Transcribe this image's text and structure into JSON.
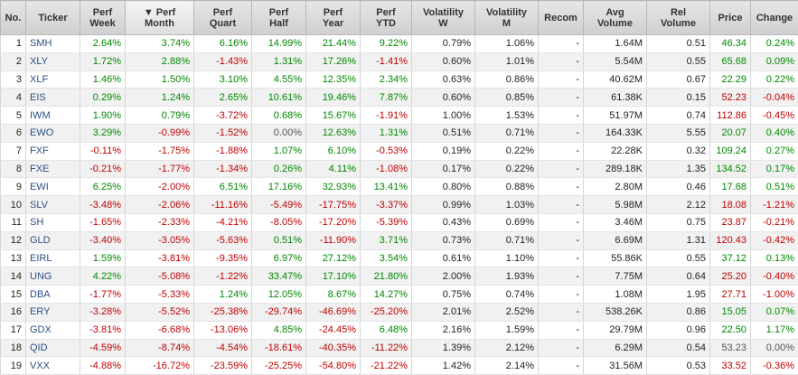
{
  "table": {
    "sorted_marker": "▼",
    "header": [
      [
        "No."
      ],
      [
        "Ticker"
      ],
      [
        "Perf",
        "Week"
      ],
      [
        "Perf",
        "Month"
      ],
      [
        "Perf",
        "Quart"
      ],
      [
        "Perf",
        "Half"
      ],
      [
        "Perf",
        "Year"
      ],
      [
        "Perf",
        "YTD"
      ],
      [
        "Volatility",
        "W"
      ],
      [
        "Volatility",
        "M"
      ],
      [
        "Recom"
      ],
      [
        "Avg",
        "Volume"
      ],
      [
        "Rel",
        "Volume"
      ],
      [
        "Price"
      ],
      [
        "Change"
      ]
    ],
    "rows": [
      [
        "1",
        "SMH",
        "2.64%",
        "3.74%",
        "6.16%",
        "14.99%",
        "21.44%",
        "9.22%",
        "0.79%",
        "1.06%",
        "-",
        "1.64M",
        "0.51",
        "46.34",
        "0.24%"
      ],
      [
        "2",
        "XLY",
        "1.72%",
        "2.88%",
        "-1.43%",
        "1.31%",
        "17.26%",
        "-1.41%",
        "0.60%",
        "1.01%",
        "-",
        "5.54M",
        "0.55",
        "65.68",
        "0.09%"
      ],
      [
        "3",
        "XLF",
        "1.46%",
        "1.50%",
        "3.10%",
        "4.55%",
        "12.35%",
        "2.34%",
        "0.63%",
        "0.86%",
        "-",
        "40.62M",
        "0.67",
        "22.29",
        "0.22%"
      ],
      [
        "4",
        "EIS",
        "0.29%",
        "1.24%",
        "2.65%",
        "10.61%",
        "19.46%",
        "7.87%",
        "0.60%",
        "0.85%",
        "-",
        "61.38K",
        "0.15",
        "52.23",
        "-0.04%"
      ],
      [
        "5",
        "IWM",
        "1.90%",
        "0.79%",
        "-3.72%",
        "0.68%",
        "15.67%",
        "-1.91%",
        "1.00%",
        "1.53%",
        "-",
        "51.97M",
        "0.74",
        "112.86",
        "-0.45%"
      ],
      [
        "6",
        "EWO",
        "3.29%",
        "-0.99%",
        "-1.52%",
        "0.00%",
        "12.63%",
        "1.31%",
        "0.51%",
        "0.71%",
        "-",
        "164.33K",
        "5.55",
        "20.07",
        "0.40%"
      ],
      [
        "7",
        "FXF",
        "-0.11%",
        "-1.75%",
        "-1.88%",
        "1.07%",
        "6.10%",
        "-0.53%",
        "0.19%",
        "0.22%",
        "-",
        "22.28K",
        "0.32",
        "109.24",
        "0.27%"
      ],
      [
        "8",
        "FXE",
        "-0.21%",
        "-1.77%",
        "-1.34%",
        "0.26%",
        "4.11%",
        "-1.08%",
        "0.17%",
        "0.22%",
        "-",
        "289.18K",
        "1.35",
        "134.52",
        "0.17%"
      ],
      [
        "9",
        "EWI",
        "6.25%",
        "-2.00%",
        "6.51%",
        "17.16%",
        "32.93%",
        "13.41%",
        "0.80%",
        "0.88%",
        "-",
        "2.80M",
        "0.46",
        "17.68",
        "0.51%"
      ],
      [
        "10",
        "SLV",
        "-3.48%",
        "-2.06%",
        "-11.16%",
        "-5.49%",
        "-17.75%",
        "-3.37%",
        "0.99%",
        "1.03%",
        "-",
        "5.98M",
        "2.12",
        "18.08",
        "-1.21%"
      ],
      [
        "11",
        "SH",
        "-1.65%",
        "-2.33%",
        "-4.21%",
        "-8.05%",
        "-17.20%",
        "-5.39%",
        "0.43%",
        "0.69%",
        "-",
        "3.46M",
        "0.75",
        "23.87",
        "-0.21%"
      ],
      [
        "12",
        "GLD",
        "-3.40%",
        "-3.05%",
        "-5.63%",
        "0.51%",
        "-11.90%",
        "3.71%",
        "0.73%",
        "0.71%",
        "-",
        "6.69M",
        "1.31",
        "120.43",
        "-0.42%"
      ],
      [
        "13",
        "EIRL",
        "1.59%",
        "-3.81%",
        "-9.35%",
        "6.97%",
        "27.12%",
        "3.54%",
        "0.61%",
        "1.10%",
        "-",
        "55.86K",
        "0.55",
        "37.12",
        "0.13%"
      ],
      [
        "14",
        "UNG",
        "4.22%",
        "-5.08%",
        "-1.22%",
        "33.47%",
        "17.10%",
        "21.80%",
        "2.00%",
        "1.93%",
        "-",
        "7.75M",
        "0.64",
        "25.20",
        "-0.40%"
      ],
      [
        "15",
        "DBA",
        "-1.77%",
        "-5.33%",
        "1.24%",
        "12.05%",
        "8.67%",
        "14.27%",
        "0.75%",
        "0.74%",
        "-",
        "1.08M",
        "1.95",
        "27.71",
        "-1.00%"
      ],
      [
        "16",
        "ERY",
        "-3.28%",
        "-5.52%",
        "-25.38%",
        "-29.74%",
        "-46.69%",
        "-25.20%",
        "2.01%",
        "2.52%",
        "-",
        "538.26K",
        "0.86",
        "15.05",
        "0.07%"
      ],
      [
        "17",
        "GDX",
        "-3.81%",
        "-6.68%",
        "-13.06%",
        "4.85%",
        "-24.45%",
        "6.48%",
        "2.16%",
        "1.59%",
        "-",
        "29.79M",
        "0.96",
        "22.50",
        "1.17%"
      ],
      [
        "18",
        "QID",
        "-4.59%",
        "-8.74%",
        "-4.54%",
        "-18.61%",
        "-40.35%",
        "-11.22%",
        "1.39%",
        "2.12%",
        "-",
        "6.29M",
        "0.54",
        "53.23",
        "0.00%"
      ],
      [
        "19",
        "VXX",
        "-4.88%",
        "-16.72%",
        "-23.59%",
        "-25.25%",
        "-54.80%",
        "-21.22%",
        "1.42%",
        "2.14%",
        "-",
        "31.56M",
        "0.53",
        "33.52",
        "-0.36%"
      ]
    ]
  }
}
